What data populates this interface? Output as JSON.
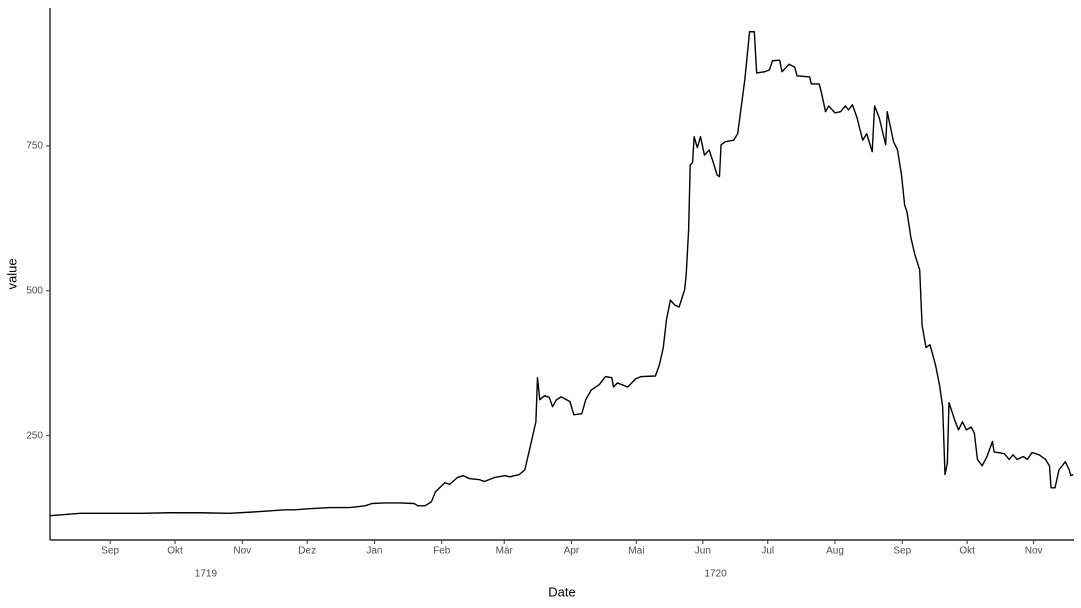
{
  "chart_data": {
    "type": "line",
    "x_label": "Date",
    "y_label": "value",
    "xlim": [
      1719.59,
      1720.884
    ],
    "ylim": [
      70,
      988
    ],
    "xticks": [
      {
        "value": 1719.666,
        "label": "Sep"
      },
      {
        "value": 1719.748,
        "label": "Okt"
      },
      {
        "value": 1719.833,
        "label": "Nov"
      },
      {
        "value": 1719.915,
        "label": "Dez"
      },
      {
        "value": 1720.0,
        "label": "Jan"
      },
      {
        "value": 1720.085,
        "label": "Feb"
      },
      {
        "value": 1720.164,
        "label": "Mär"
      },
      {
        "value": 1720.249,
        "label": "Apr"
      },
      {
        "value": 1720.331,
        "label": "Mai"
      },
      {
        "value": 1720.415,
        "label": "Jun"
      },
      {
        "value": 1720.497,
        "label": "Jul"
      },
      {
        "value": 1720.582,
        "label": "Aug"
      },
      {
        "value": 1720.667,
        "label": "Sep"
      },
      {
        "value": 1720.749,
        "label": "Okt"
      },
      {
        "value": 1720.833,
        "label": "Nov"
      }
    ],
    "year_ticks": [
      {
        "value": 1719.787,
        "label": "1719"
      },
      {
        "value": 1720.431,
        "label": "1720"
      }
    ],
    "yticks": [
      250,
      500,
      750
    ],
    "grid": false,
    "series": [
      {
        "color": "#000000",
        "x": [
          1719.59,
          1719.628,
          1719.666,
          1719.704,
          1719.742,
          1719.779,
          1719.817,
          1719.855,
          1719.887,
          1719.899,
          1719.918,
          1719.944,
          1719.969,
          1719.988,
          1719.997,
          1720.013,
          1720.032,
          1720.05,
          1720.055,
          1720.064,
          1720.072,
          1720.077,
          1720.089,
          1720.095,
          1720.105,
          1720.112,
          1720.12,
          1720.133,
          1720.139,
          1720.152,
          1720.165,
          1720.171,
          1720.183,
          1720.19,
          1720.196,
          1720.204,
          1720.206,
          1720.209,
          1720.215,
          1720.221,
          1720.225,
          1720.23,
          1720.236,
          1720.247,
          1720.252,
          1720.262,
          1720.267,
          1720.274,
          1720.284,
          1720.292,
          1720.3,
          1720.302,
          1720.307,
          1720.32,
          1720.33,
          1720.337,
          1720.355,
          1720.36,
          1720.365,
          1720.369,
          1720.374,
          1720.379,
          1720.385,
          1720.392,
          1720.394,
          1720.397,
          1720.399,
          1720.402,
          1720.404,
          1720.408,
          1720.412,
          1720.417,
          1720.423,
          1720.428,
          1720.433,
          1720.436,
          1720.438,
          1720.443,
          1720.454,
          1720.459,
          1720.468,
          1720.474,
          1720.48,
          1720.483,
          1720.493,
          1720.499,
          1720.503,
          1720.512,
          1720.515,
          1720.524,
          1720.531,
          1720.534,
          1720.55,
          1720.552,
          1720.562,
          1720.565,
          1720.57,
          1720.574,
          1720.582,
          1720.589,
          1720.595,
          1720.599,
          1720.604,
          1720.61,
          1720.613,
          1720.617,
          1720.622,
          1720.629,
          1720.632,
          1720.638,
          1720.646,
          1720.648,
          1720.656,
          1720.661,
          1720.666,
          1720.67,
          1720.673,
          1720.678,
          1720.683,
          1720.689,
          1720.692,
          1720.697,
          1720.702,
          1720.709,
          1720.714,
          1720.718,
          1720.721,
          1720.724,
          1720.726,
          1720.733,
          1720.738,
          1720.743,
          1720.748,
          1720.754,
          1720.758,
          1720.762,
          1720.768,
          1720.774,
          1720.781,
          1720.783,
          1720.796,
          1720.802,
          1720.807,
          1720.812,
          1720.82,
          1720.825,
          1720.831,
          1720.84,
          1720.848,
          1720.853,
          1720.855,
          1720.86,
          1720.865,
          1720.873,
          1720.878,
          1720.88,
          1720.883
        ],
        "values": [
          112,
          116,
          116,
          116,
          117,
          117,
          116,
          119,
          122,
          122,
          124,
          126,
          126,
          129,
          133,
          134,
          134,
          133,
          129,
          129,
          136,
          153,
          169,
          166,
          178,
          181,
          176,
          174,
          171,
          178,
          181,
          179,
          183,
          191,
          226,
          274,
          350,
          312,
          319,
          316,
          300,
          312,
          317,
          309,
          286,
          288,
          312,
          329,
          338,
          352,
          350,
          334,
          341,
          334,
          348,
          352,
          353,
          372,
          402,
          450,
          484,
          476,
          472,
          502,
          529,
          605,
          717,
          721,
          766,
          747,
          766,
          734,
          743,
          722,
          700,
          697,
          752,
          757,
          760,
          771,
          864,
          947,
          947,
          876,
          878,
          881,
          897,
          898,
          878,
          891,
          886,
          871,
          869,
          857,
          857,
          841,
          809,
          819,
          807,
          809,
          819,
          812,
          821,
          798,
          781,
          760,
          771,
          740,
          819,
          798,
          752,
          809,
          757,
          743,
          700,
          648,
          636,
          591,
          562,
          536,
          441,
          402,
          407,
          372,
          338,
          300,
          183,
          203,
          307,
          278,
          260,
          274,
          260,
          265,
          255,
          209,
          198,
          214,
          240,
          222,
          219,
          209,
          217,
          209,
          214,
          209,
          221,
          217,
          209,
          198,
          160,
          160,
          191,
          205,
          191,
          181,
          183
        ]
      }
    ]
  }
}
